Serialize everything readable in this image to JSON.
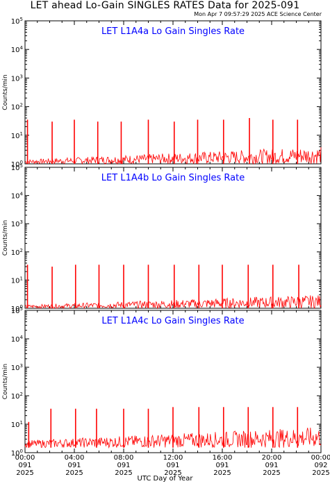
{
  "header": {
    "title": "LET ahead Lo-Gain SINGLES RATES Data for 2025-091",
    "timestamp": "Mon Apr  7 09:57:29 2025 ACE Science Center"
  },
  "footer": {
    "xlabel": "UTC Day of Year"
  },
  "colors": {
    "series": "#ff0000",
    "panel_title": "#0000ff",
    "axes": "#000000"
  },
  "chart_data": [
    {
      "type": "line",
      "title": "LET L1A4a Lo Gain Singles Rate",
      "ylabel": "Counts/min",
      "yscale": "log",
      "ylim": [
        1,
        100000
      ],
      "xlim": [
        0,
        24
      ],
      "baseline": [
        1.0,
        4.0
      ],
      "spikes": [
        {
          "x": 0.2,
          "y": 35
        },
        {
          "x": 2.2,
          "y": 30
        },
        {
          "x": 4.0,
          "y": 35
        },
        {
          "x": 5.9,
          "y": 30
        },
        {
          "x": 7.8,
          "y": 30
        },
        {
          "x": 10.0,
          "y": 35
        },
        {
          "x": 12.1,
          "y": 30
        },
        {
          "x": 14.0,
          "y": 35
        },
        {
          "x": 16.1,
          "y": 35
        },
        {
          "x": 18.2,
          "y": 40
        },
        {
          "x": 20.1,
          "y": 35
        },
        {
          "x": 22.1,
          "y": 35
        }
      ]
    },
    {
      "type": "line",
      "title": "LET L1A4b Lo Gain Singles Rate",
      "ylabel": "Counts/min",
      "yscale": "log",
      "ylim": [
        1,
        100000
      ],
      "xlim": [
        0,
        24
      ],
      "baseline": [
        1.0,
        3.0
      ],
      "spikes": [
        {
          "x": 0.2,
          "y": 35
        },
        {
          "x": 2.2,
          "y": 30
        },
        {
          "x": 4.1,
          "y": 35
        },
        {
          "x": 6.0,
          "y": 35
        },
        {
          "x": 8.0,
          "y": 35
        },
        {
          "x": 10.0,
          "y": 35
        },
        {
          "x": 12.1,
          "y": 35
        },
        {
          "x": 14.1,
          "y": 35
        },
        {
          "x": 16.0,
          "y": 35
        },
        {
          "x": 18.1,
          "y": 35
        },
        {
          "x": 20.1,
          "y": 35
        },
        {
          "x": 22.2,
          "y": 35
        }
      ]
    },
    {
      "type": "line",
      "title": "LET L1A4c Lo Gain Singles Rate",
      "ylabel": "Counts/min",
      "yscale": "log",
      "ylim": [
        1,
        100000
      ],
      "xlim": [
        0,
        24
      ],
      "baseline": [
        1.5,
        8.0
      ],
      "spikes": [
        {
          "x": 0.3,
          "y": 12
        },
        {
          "x": 2.1,
          "y": 35
        },
        {
          "x": 4.1,
          "y": 35
        },
        {
          "x": 5.8,
          "y": 35
        },
        {
          "x": 8.0,
          "y": 35
        },
        {
          "x": 10.0,
          "y": 35
        },
        {
          "x": 12.0,
          "y": 40
        },
        {
          "x": 14.1,
          "y": 40
        },
        {
          "x": 16.1,
          "y": 40
        },
        {
          "x": 18.1,
          "y": 40
        },
        {
          "x": 20.1,
          "y": 40
        },
        {
          "x": 22.1,
          "y": 40
        }
      ]
    }
  ],
  "x_axis": {
    "ticks": [
      {
        "x": 0,
        "line1": "00:00",
        "line2": "091",
        "line3": "2025"
      },
      {
        "x": 4,
        "line1": "04:00",
        "line2": "091",
        "line3": "2025"
      },
      {
        "x": 8,
        "line1": "08:00",
        "line2": "091",
        "line3": "2025"
      },
      {
        "x": 12,
        "line1": "12:00",
        "line2": "091",
        "line3": "2025"
      },
      {
        "x": 16,
        "line1": "16:00",
        "line2": "091",
        "line3": "2025"
      },
      {
        "x": 20,
        "line1": "20:00",
        "line2": "091",
        "line3": "2025"
      },
      {
        "x": 24,
        "line1": "00:00",
        "line2": "092",
        "line3": "2025"
      }
    ]
  },
  "y_axis": {
    "ticks": [
      {
        "exp": 0,
        "base": "10",
        "sup": "0"
      },
      {
        "exp": 1,
        "base": "10",
        "sup": "1"
      },
      {
        "exp": 2,
        "base": "10",
        "sup": "2"
      },
      {
        "exp": 3,
        "base": "10",
        "sup": "3"
      },
      {
        "exp": 4,
        "base": "10",
        "sup": "4"
      },
      {
        "exp": 5,
        "base": "10",
        "sup": "5"
      }
    ]
  }
}
